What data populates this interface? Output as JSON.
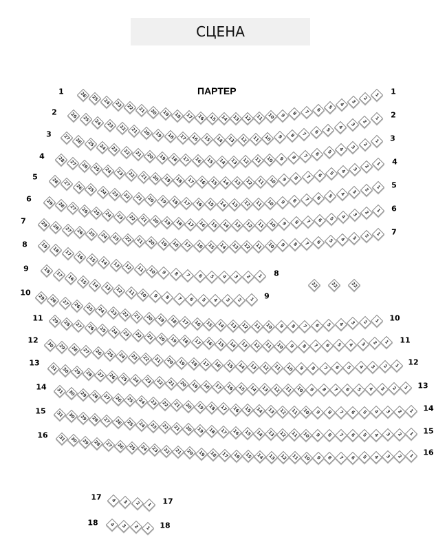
{
  "stage": {
    "label": "СЦЕНА"
  },
  "section": {
    "title": "ПАРТЕР"
  },
  "colors": {
    "seat_fill": "#ffffff",
    "seat_border": "#8a8a8a",
    "stage_bg": "#f0f0f0"
  },
  "rows": [
    {
      "label": "1",
      "right_label": "1",
      "seats_from": 26,
      "seats_to": 1
    },
    {
      "label": "2",
      "right_label": "2",
      "seats_from": 26,
      "seats_to": 1
    },
    {
      "label": "3",
      "right_label": "3",
      "seats_from": 27,
      "seats_to": 1
    },
    {
      "label": "4",
      "right_label": "4",
      "seats_from": 28,
      "seats_to": 1
    },
    {
      "label": "5",
      "right_label": "5",
      "seats_from": 28,
      "seats_to": 1
    },
    {
      "label": "6",
      "right_label": "6",
      "seats_from": 29,
      "seats_to": 1
    },
    {
      "label": "7",
      "right_label": "7",
      "seats_from": 29,
      "seats_to": 1
    },
    {
      "label": "8",
      "right_label": "8",
      "seats_from": 19,
      "seats_to": 1
    },
    {
      "label": "9",
      "right_label": "9",
      "seats_from": 18,
      "seats_to": 1
    },
    {
      "label": "10",
      "right_label": "10",
      "seats_from": 29,
      "seats_to": 1
    },
    {
      "label": "11",
      "right_label": "11",
      "seats_from": 29,
      "seats_to": 1
    },
    {
      "label": "12",
      "right_label": "12",
      "seats_from": 30,
      "seats_to": 1
    },
    {
      "label": "13",
      "right_label": "13",
      "seats_from": 31,
      "seats_to": 1
    },
    {
      "label": "14",
      "right_label": "14",
      "seats_from": 31,
      "seats_to": 1
    },
    {
      "label": "15",
      "right_label": "15",
      "seats_from": 31,
      "seats_to": 1
    },
    {
      "label": "16",
      "right_label": "16",
      "seats_from": 31,
      "seats_to": 1
    },
    {
      "label": "17",
      "right_label": "17",
      "seats_from": 4,
      "seats_to": 1
    },
    {
      "label": "18",
      "right_label": "18",
      "seats_from": 4,
      "seats_to": 1
    }
  ],
  "extra_seats": [
    {
      "number": "22"
    },
    {
      "number": "22"
    },
    {
      "number": "22"
    }
  ]
}
